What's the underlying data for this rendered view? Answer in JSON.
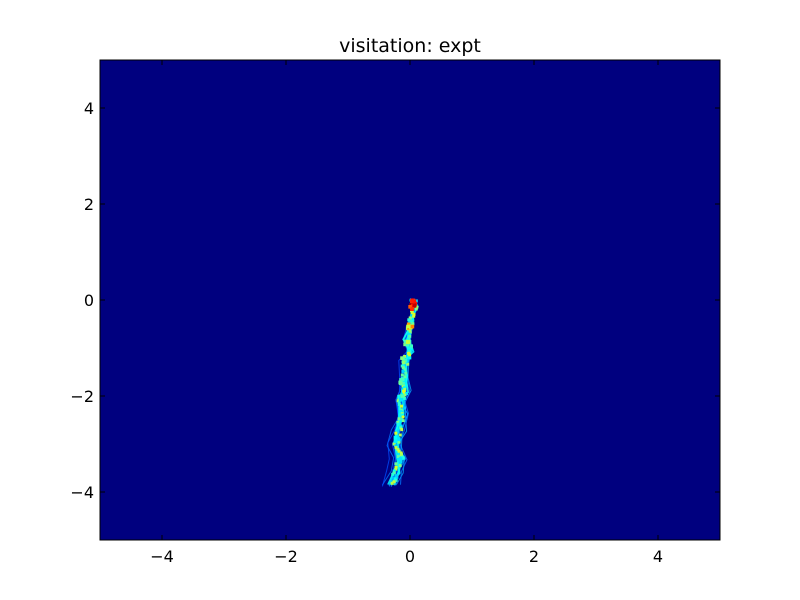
{
  "chart_data": {
    "type": "heatmap",
    "title": "visitation: expt",
    "xlabel": "",
    "ylabel": "",
    "xlim": [
      -5,
      5
    ],
    "ylim": [
      -5,
      5
    ],
    "xticks": [
      -4,
      -2,
      0,
      2,
      4
    ],
    "yticks": [
      -4,
      -2,
      0,
      2,
      4
    ],
    "xtick_labels": [
      "−4",
      "−2",
      "0",
      "2",
      "4"
    ],
    "ytick_labels": [
      "−4",
      "−2",
      "0",
      "2",
      "4"
    ],
    "grid": false,
    "colormap": "jet",
    "background_color": "#00007f",
    "trajectory_centerline": [
      {
        "x": 0.05,
        "y": 0.0
      },
      {
        "x": 0.08,
        "y": -0.15
      },
      {
        "x": 0.02,
        "y": -0.45
      },
      {
        "x": -0.05,
        "y": -0.8
      },
      {
        "x": 0.0,
        "y": -1.05
      },
      {
        "x": -0.08,
        "y": -1.3
      },
      {
        "x": -0.1,
        "y": -1.6
      },
      {
        "x": -0.08,
        "y": -1.9
      },
      {
        "x": -0.15,
        "y": -2.1
      },
      {
        "x": -0.12,
        "y": -2.4
      },
      {
        "x": -0.18,
        "y": -2.7
      },
      {
        "x": -0.22,
        "y": -3.0
      },
      {
        "x": -0.15,
        "y": -3.3
      },
      {
        "x": -0.22,
        "y": -3.6
      },
      {
        "x": -0.3,
        "y": -3.85
      }
    ],
    "hotspots": [
      {
        "x": 0.05,
        "y": -0.05,
        "level": 1.0
      },
      {
        "x": 0.04,
        "y": -0.15,
        "level": 0.95
      },
      {
        "x": 0.0,
        "y": -0.55,
        "level": 0.75
      },
      {
        "x": -0.05,
        "y": -0.9,
        "level": 0.6
      },
      {
        "x": -0.1,
        "y": -1.25,
        "level": 0.55
      },
      {
        "x": -0.12,
        "y": -1.7,
        "level": 0.5
      },
      {
        "x": -0.15,
        "y": -2.05,
        "level": 0.5
      },
      {
        "x": -0.2,
        "y": -2.9,
        "level": 0.4
      },
      {
        "x": -0.15,
        "y": -3.3,
        "level": 0.4
      }
    ]
  }
}
